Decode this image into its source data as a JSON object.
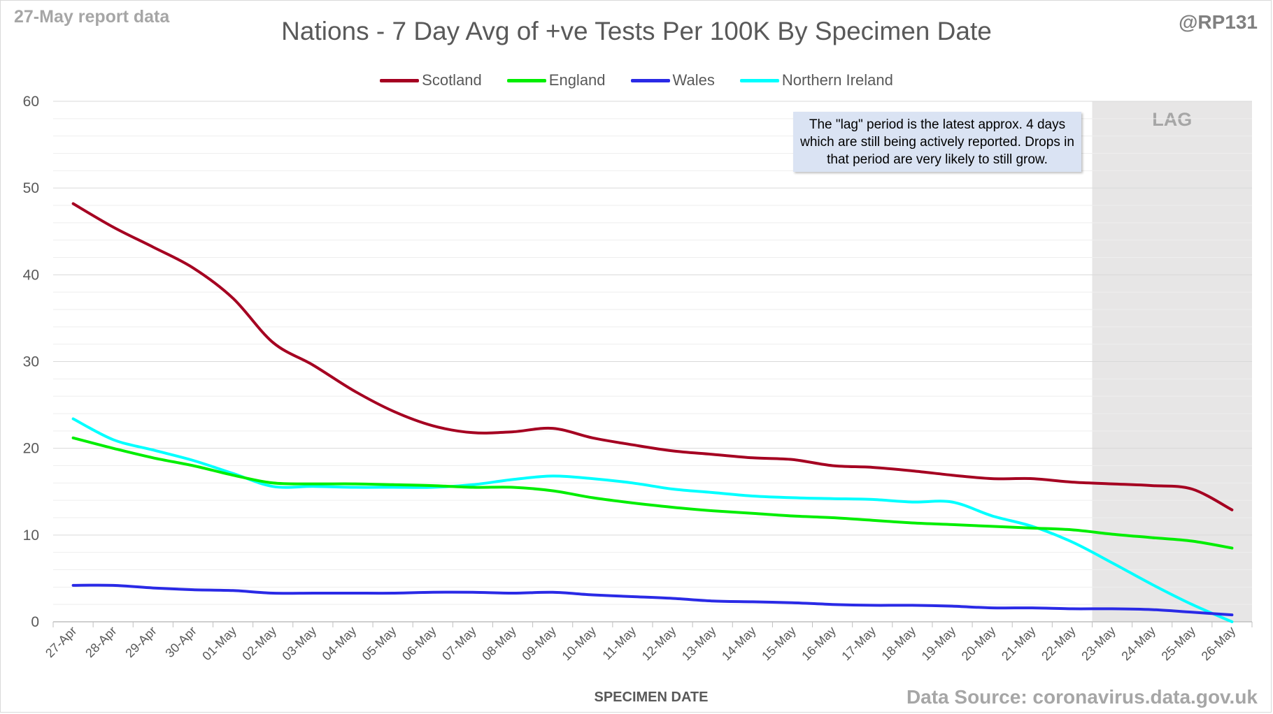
{
  "header": {
    "report_label": "27-May report data",
    "handle": "@RP131",
    "source": "Data Source: coronavirus.data.gov.uk"
  },
  "note": {
    "text": "The \"lag\" period is the latest approx. 4 days which are still being actively reported. Drops in that period are very likely to still grow."
  },
  "chart_data": {
    "type": "line",
    "title": "Nations - 7 Day Avg of +ve Tests Per 100K By Specimen Date",
    "xlabel": "SPECIMEN DATE",
    "ylabel": "",
    "ylim": [
      0,
      60
    ],
    "yticks": [
      0,
      10,
      20,
      30,
      40,
      50,
      60
    ],
    "grid": true,
    "legend_position": "top",
    "lag_label": "LAG",
    "lag_start": "23-May",
    "categories": [
      "27-Apr",
      "28-Apr",
      "29-Apr",
      "30-Apr",
      "01-May",
      "02-May",
      "03-May",
      "04-May",
      "05-May",
      "06-May",
      "07-May",
      "08-May",
      "09-May",
      "10-May",
      "11-May",
      "12-May",
      "13-May",
      "14-May",
      "15-May",
      "16-May",
      "17-May",
      "18-May",
      "19-May",
      "20-May",
      "21-May",
      "22-May",
      "23-May",
      "24-May",
      "25-May",
      "26-May"
    ],
    "series": [
      {
        "name": "Scotland",
        "color": "#a50021",
        "values": [
          48.2,
          45.5,
          43.2,
          40.8,
          37.3,
          32.2,
          29.6,
          26.7,
          24.3,
          22.6,
          21.8,
          21.9,
          22.3,
          21.2,
          20.4,
          19.7,
          19.3,
          18.9,
          18.7,
          18.0,
          17.8,
          17.4,
          16.9,
          16.5,
          16.5,
          16.1,
          15.9,
          15.7,
          15.3,
          12.9
        ]
      },
      {
        "name": "England",
        "color": "#00ee00",
        "values": [
          21.2,
          20.0,
          18.9,
          18.0,
          16.9,
          16.0,
          15.9,
          15.9,
          15.8,
          15.7,
          15.5,
          15.5,
          15.1,
          14.3,
          13.7,
          13.2,
          12.8,
          12.5,
          12.2,
          12.0,
          11.7,
          11.4,
          11.2,
          11.0,
          10.8,
          10.6,
          10.1,
          9.7,
          9.3,
          8.5
        ]
      },
      {
        "name": "Wales",
        "color": "#2a2ae6",
        "values": [
          4.2,
          4.2,
          3.9,
          3.7,
          3.6,
          3.3,
          3.3,
          3.3,
          3.3,
          3.4,
          3.4,
          3.3,
          3.4,
          3.1,
          2.9,
          2.7,
          2.4,
          2.3,
          2.2,
          2.0,
          1.9,
          1.9,
          1.8,
          1.6,
          1.6,
          1.5,
          1.5,
          1.4,
          1.1,
          0.8
        ]
      },
      {
        "name": "Northern Ireland",
        "color": "#00ffff",
        "values": [
          23.4,
          21.0,
          19.8,
          18.6,
          17.1,
          15.6,
          15.6,
          15.5,
          15.5,
          15.5,
          15.8,
          16.4,
          16.8,
          16.5,
          16.0,
          15.3,
          14.9,
          14.5,
          14.3,
          14.2,
          14.1,
          13.8,
          13.8,
          12.2,
          11.0,
          9.2,
          6.8,
          4.3,
          2.0,
          0.0
        ]
      }
    ]
  }
}
